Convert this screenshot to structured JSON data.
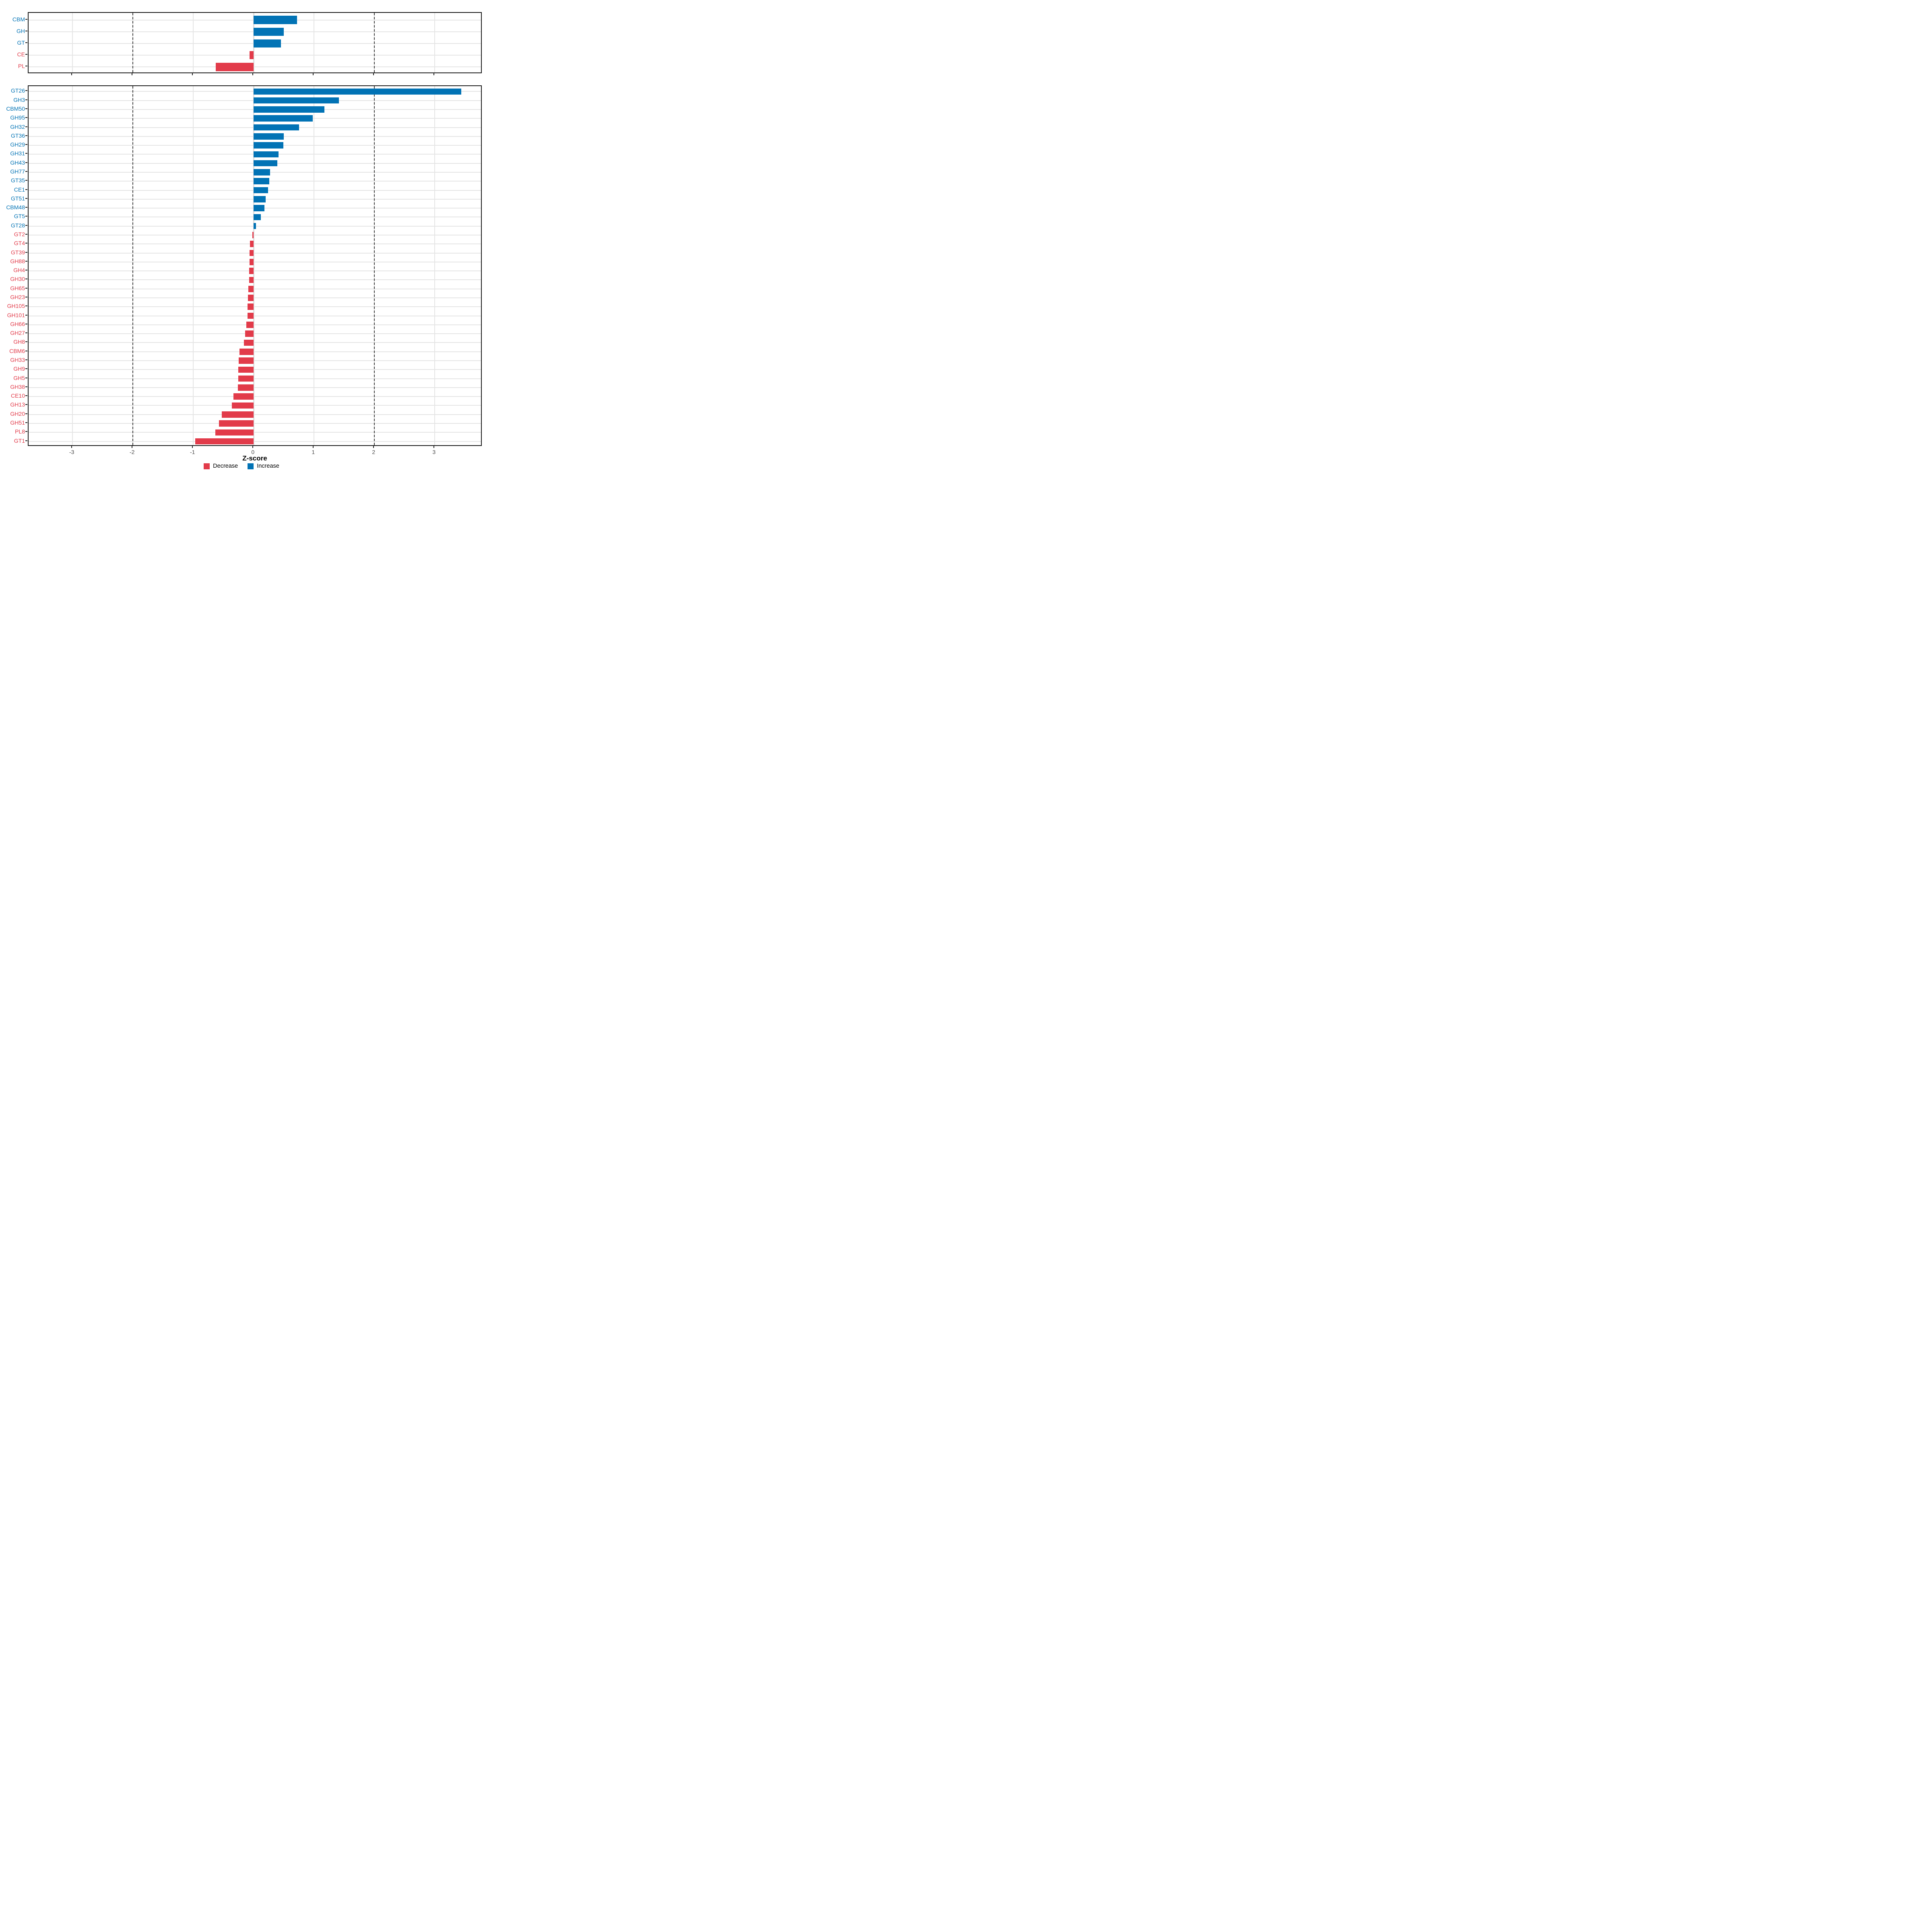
{
  "axis": {
    "title": "Z-score",
    "ticks": [
      -3,
      -2,
      -1,
      0,
      1,
      2,
      3
    ],
    "tick_labels": [
      "-3",
      "-2",
      "-1",
      "0",
      "1",
      "2",
      "3"
    ],
    "dashed_lines": [
      -2,
      2
    ],
    "xlim": [
      -3.73,
      3.76
    ]
  },
  "legend": {
    "items": [
      {
        "label": "Decrease",
        "color": "#E23B4A"
      },
      {
        "label": "Increase",
        "color": "#0273B5"
      }
    ]
  },
  "colors": {
    "increase": "#0273B5",
    "decrease": "#E23B4A",
    "grid": "#E5E5E5",
    "zero_grid": "#DEDEDE",
    "panel_border": "#1A1A1A",
    "dashed_line": "#3F3F3F",
    "axis_text": "#4A4A4A",
    "tick_mark": "#222222"
  },
  "chart_data": [
    {
      "id": "classes",
      "type": "bar",
      "orientation": "horizontal",
      "categories": [
        "CBM",
        "GH",
        "GT",
        "CE",
        "PL"
      ],
      "values": [
        0.72,
        0.5,
        0.45,
        -0.07,
        -0.63
      ],
      "xlabel": "Z-score",
      "xlim": [
        -3.73,
        3.76
      ],
      "grid": true,
      "legend_position": "bottom"
    },
    {
      "id": "families",
      "type": "bar",
      "orientation": "horizontal",
      "categories": [
        "GT26",
        "GH3",
        "CBM50",
        "GH95",
        "GH32",
        "GT36",
        "GH29",
        "GH31",
        "GH43",
        "GH77",
        "GT35",
        "CE1",
        "GT51",
        "CBM48",
        "GT5",
        "GT28",
        "GT2",
        "GT4",
        "GT39",
        "GH88",
        "GH4",
        "GH30",
        "GH65",
        "GH23",
        "GH105",
        "GH101",
        "GH66",
        "GH27",
        "GH8",
        "CBM6",
        "GH33",
        "GH9",
        "GH5",
        "GH38",
        "CE10",
        "GH13",
        "GH20",
        "GH51",
        "PL8",
        "GT1"
      ],
      "values": [
        3.44,
        1.41,
        1.17,
        0.98,
        0.75,
        0.5,
        0.49,
        0.41,
        0.39,
        0.27,
        0.26,
        0.24,
        0.2,
        0.18,
        0.12,
        0.04,
        -0.02,
        -0.06,
        -0.07,
        -0.071,
        -0.073,
        -0.076,
        -0.09,
        -0.098,
        -0.1,
        -0.103,
        -0.125,
        -0.143,
        -0.162,
        -0.237,
        -0.247,
        -0.256,
        -0.258,
        -0.26,
        -0.333,
        -0.363,
        -0.527,
        -0.578,
        -0.633,
        -0.967
      ],
      "xlabel": "Z-score",
      "xlim": [
        -3.73,
        3.76
      ],
      "grid": true,
      "legend_position": "bottom"
    }
  ]
}
